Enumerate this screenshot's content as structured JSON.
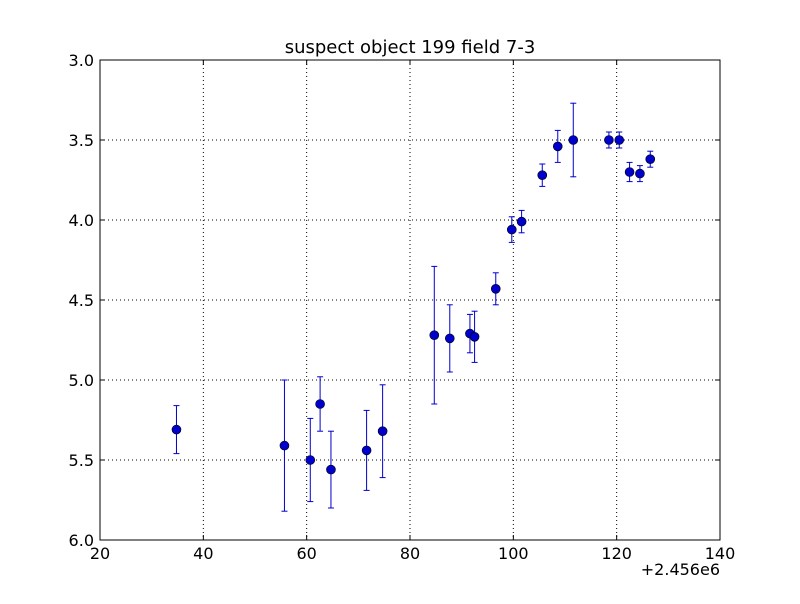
{
  "chart_data": {
    "type": "scatter",
    "title": "suspect object 199 field 7-3",
    "xlabel": "",
    "ylabel": "",
    "x_offset_text": "+2.456e6",
    "xlim": [
      20,
      140
    ],
    "ylim": [
      3.0,
      6.0
    ],
    "y_inverted": true,
    "grid": true,
    "legend": "none",
    "x_ticks": [
      20,
      40,
      60,
      80,
      100,
      120,
      140
    ],
    "x_tick_labels": [
      "20",
      "40",
      "60",
      "80",
      "100",
      "120",
      "140"
    ],
    "y_ticks": [
      3.0,
      3.5,
      4.0,
      4.5,
      5.0,
      5.5,
      6.0
    ],
    "y_tick_labels": [
      "3.0",
      "3.5",
      "4.0",
      "4.5",
      "5.0",
      "5.5",
      "6.0"
    ],
    "series": [
      {
        "color": "#0000cc",
        "points": [
          {
            "x": 34.8,
            "y": 5.31,
            "err": 0.15
          },
          {
            "x": 55.7,
            "y": 5.41,
            "err": 0.41
          },
          {
            "x": 60.7,
            "y": 5.5,
            "err": 0.26
          },
          {
            "x": 62.6,
            "y": 5.15,
            "err": 0.17
          },
          {
            "x": 64.7,
            "y": 5.56,
            "err": 0.24
          },
          {
            "x": 71.6,
            "y": 5.44,
            "err": 0.25
          },
          {
            "x": 74.7,
            "y": 5.32,
            "err": 0.29
          },
          {
            "x": 84.7,
            "y": 4.72,
            "err": 0.43
          },
          {
            "x": 87.7,
            "y": 4.74,
            "err": 0.21
          },
          {
            "x": 91.6,
            "y": 4.71,
            "err": 0.12
          },
          {
            "x": 92.5,
            "y": 4.73,
            "err": 0.16
          },
          {
            "x": 96.6,
            "y": 4.43,
            "err": 0.1
          },
          {
            "x": 99.7,
            "y": 4.06,
            "err": 0.08
          },
          {
            "x": 101.6,
            "y": 4.01,
            "err": 0.07
          },
          {
            "x": 105.6,
            "y": 3.72,
            "err": 0.07
          },
          {
            "x": 108.6,
            "y": 3.54,
            "err": 0.1
          },
          {
            "x": 111.6,
            "y": 3.5,
            "err": 0.23
          },
          {
            "x": 118.5,
            "y": 3.5,
            "err": 0.05
          },
          {
            "x": 120.5,
            "y": 3.5,
            "err": 0.05
          },
          {
            "x": 122.5,
            "y": 3.7,
            "err": 0.06
          },
          {
            "x": 124.5,
            "y": 3.71,
            "err": 0.05
          },
          {
            "x": 126.5,
            "y": 3.62,
            "err": 0.05
          }
        ]
      }
    ]
  }
}
